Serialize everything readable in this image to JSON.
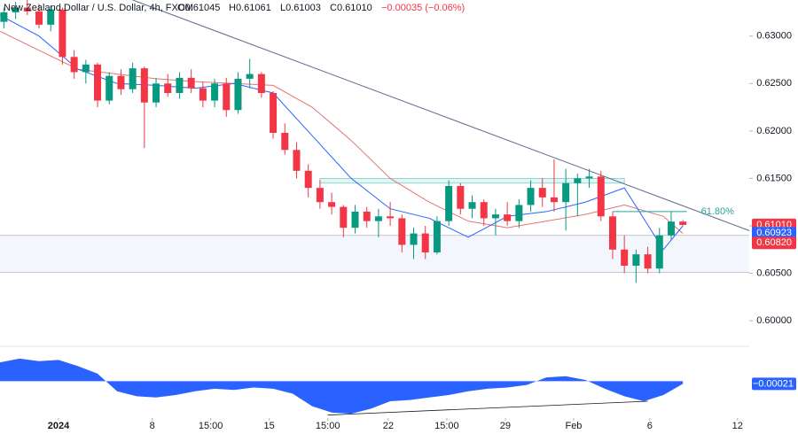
{
  "chart_data": {
    "type": "candlestick",
    "header": {
      "symbol": "New Zealand Dollar / U.S. Dollar, 4h, FXCM",
      "open": "O0.61045",
      "high": "H0.61061",
      "low": "L0.61003",
      "close": "C0.61010",
      "change": "−0.00035 (−0.06%)"
    },
    "up_color": "#089981",
    "down_color": "#f23645",
    "x": [
      1,
      4,
      7,
      10,
      13,
      16,
      19,
      22,
      25,
      28,
      31,
      34,
      37,
      40,
      43,
      46,
      49,
      52,
      55,
      58,
      61,
      64,
      67,
      70,
      73,
      76,
      79,
      82,
      85,
      88,
      91,
      94,
      97,
      100,
      103,
      106,
      109,
      112,
      115,
      118,
      121,
      124,
      127,
      130,
      133,
      136,
      139,
      142,
      145,
      148,
      151,
      154,
      157,
      160,
      163,
      166,
      169,
      172,
      175
    ],
    "open": [
      0.6315,
      0.6325,
      0.633,
      0.6326,
      0.6312,
      0.6328,
      0.6278,
      0.6262,
      0.627,
      0.6232,
      0.6258,
      0.6244,
      0.6266,
      0.623,
      0.625,
      0.624,
      0.6256,
      0.6245,
      0.6232,
      0.625,
      0.6222,
      0.6255,
      0.626,
      0.624,
      0.6198,
      0.618,
      0.6158,
      0.614,
      0.6125,
      0.612,
      0.6098,
      0.6115,
      0.6105,
      0.611,
      0.6108,
      0.608,
      0.6092,
      0.6072,
      0.6105,
      0.6142,
      0.6118,
      0.6125,
      0.6108,
      0.6112,
      0.6105,
      0.6122,
      0.614,
      0.613,
      0.6125,
      0.6145,
      0.615,
      0.6152,
      0.611,
      0.6075,
      0.6058,
      0.607,
      0.6055,
      0.609,
      0.61045
    ],
    "high": [
      0.633,
      0.6336,
      0.6338,
      0.6334,
      0.6332,
      0.633,
      0.6285,
      0.6275,
      0.6272,
      0.6262,
      0.6265,
      0.6272,
      0.6268,
      0.6256,
      0.626,
      0.6262,
      0.6265,
      0.6252,
      0.6255,
      0.6256,
      0.6262,
      0.6276,
      0.6262,
      0.6242,
      0.6208,
      0.6188,
      0.6165,
      0.6148,
      0.6135,
      0.6122,
      0.6122,
      0.612,
      0.6118,
      0.6125,
      0.6112,
      0.6098,
      0.61,
      0.611,
      0.6148,
      0.6145,
      0.6132,
      0.6128,
      0.6118,
      0.6125,
      0.6128,
      0.6148,
      0.615,
      0.617,
      0.616,
      0.6155,
      0.616,
      0.6158,
      0.6115,
      0.609,
      0.6075,
      0.6078,
      0.6098,
      0.6115,
      0.61061
    ],
    "low": [
      0.6308,
      0.6318,
      0.6322,
      0.6308,
      0.6305,
      0.627,
      0.6255,
      0.625,
      0.6225,
      0.6228,
      0.6238,
      0.624,
      0.6182,
      0.6225,
      0.6236,
      0.6234,
      0.624,
      0.6225,
      0.6225,
      0.6215,
      0.6218,
      0.6245,
      0.6235,
      0.6192,
      0.6175,
      0.615,
      0.613,
      0.6118,
      0.6112,
      0.6088,
      0.6092,
      0.6098,
      0.6088,
      0.61,
      0.6072,
      0.6065,
      0.6065,
      0.607,
      0.61,
      0.6112,
      0.6108,
      0.61,
      0.609,
      0.61,
      0.6098,
      0.6115,
      0.612,
      0.6115,
      0.6095,
      0.611,
      0.614,
      0.6105,
      0.6065,
      0.605,
      0.604,
      0.605,
      0.605,
      0.6085,
      0.61003
    ],
    "close": [
      0.6325,
      0.633,
      0.6326,
      0.6312,
      0.6328,
      0.6278,
      0.6262,
      0.627,
      0.6232,
      0.6258,
      0.6244,
      0.6266,
      0.623,
      0.625,
      0.624,
      0.6256,
      0.6245,
      0.6232,
      0.625,
      0.6222,
      0.6255,
      0.626,
      0.624,
      0.6198,
      0.618,
      0.6158,
      0.614,
      0.6125,
      0.612,
      0.6098,
      0.6115,
      0.6105,
      0.611,
      0.6108,
      0.608,
      0.6092,
      0.6072,
      0.6105,
      0.6142,
      0.6118,
      0.6125,
      0.6108,
      0.6112,
      0.6105,
      0.6122,
      0.614,
      0.613,
      0.6125,
      0.6145,
      0.615,
      0.6152,
      0.611,
      0.6075,
      0.6058,
      0.607,
      0.6055,
      0.609,
      0.61045,
      0.6101
    ],
    "moving_averages": {
      "x": [
        0,
        10,
        20,
        30,
        40,
        50,
        60,
        70,
        80,
        90,
        100,
        110,
        120,
        130,
        140,
        150,
        160,
        170,
        175
      ],
      "series": [
        {
          "color": "#e57373",
          "values": [
            0.6305,
            0.6285,
            0.6265,
            0.626,
            0.6255,
            0.6252,
            0.625,
            0.6248,
            0.6225,
            0.619,
            0.615,
            0.6125,
            0.6105,
            0.6098,
            0.6105,
            0.6112,
            0.6122,
            0.611,
            0.6092
          ]
        },
        {
          "color": "#2962ff",
          "values": [
            0.6322,
            0.63,
            0.6265,
            0.625,
            0.6248,
            0.6245,
            0.625,
            0.624,
            0.6195,
            0.615,
            0.6118,
            0.6108,
            0.6088,
            0.611,
            0.6115,
            0.6125,
            0.614,
            0.6075,
            0.61
          ]
        }
      ]
    },
    "xlim": [
      0,
      192
    ],
    "ylim": [
      0.5974,
      0.6338
    ],
    "yticks": [
      {
        "value": 0.6,
        "label": "0.60000"
      },
      {
        "value": 0.605,
        "label": "0.60500"
      },
      {
        "value": 0.61,
        "label": "0.61000"
      },
      {
        "value": 0.615,
        "label": "0.61500"
      },
      {
        "value": 0.62,
        "label": "0.62000"
      },
      {
        "value": 0.625,
        "label": "0.62500"
      },
      {
        "value": 0.63,
        "label": "0.63000"
      }
    ],
    "xticks": [
      {
        "value": 15,
        "label": "2024"
      },
      {
        "value": 39,
        "label": "8"
      },
      {
        "value": 54,
        "label": "15:00"
      },
      {
        "value": 69,
        "label": "15"
      },
      {
        "value": 84,
        "label": "15:00"
      },
      {
        "value": 99.5,
        "label": "22"
      },
      {
        "value": 114.5,
        "label": "15:00"
      },
      {
        "value": 129.5,
        "label": "29"
      },
      {
        "value": 147,
        "label": "Feb"
      },
      {
        "value": 166.5,
        "label": "6"
      },
      {
        "value": 189,
        "label": "12"
      }
    ],
    "price_tags": [
      {
        "value": 0.6101,
        "label": "0.61010",
        "color": "#f23645"
      },
      {
        "value": 0.60923,
        "label": "0.60923",
        "color": "#2962ff"
      },
      {
        "value": 0.6082,
        "label": "0.60820",
        "color": "#f23645"
      }
    ],
    "trendline": {
      "x": [
        34,
        192
      ],
      "values": [
        0.6338,
        0.6095
      ]
    },
    "support_zone": [
      0.6051,
      0.609
    ],
    "resistance_box": {
      "x": [
        82,
        160
      ],
      "values": [
        0.6145,
        0.615
      ]
    },
    "fib_level": {
      "x": [
        157,
        176
      ],
      "value": 0.6115,
      "label": "61.80%"
    },
    "oscillator": {
      "color": "#2962ff",
      "ylim": [
        -0.0028,
        0.0025
      ],
      "x": [
        0,
        5,
        10,
        15,
        20,
        25,
        30,
        35,
        40,
        45,
        50,
        55,
        60,
        65,
        70,
        75,
        80,
        85,
        90,
        95,
        100,
        105,
        110,
        115,
        120,
        125,
        130,
        135,
        140,
        145,
        150,
        155,
        160,
        165,
        170,
        175
      ],
      "values": [
        0.0015,
        0.0018,
        0.0016,
        0.0017,
        0.0012,
        0.0006,
        -0.0008,
        -0.0012,
        -0.0013,
        -0.0011,
        -0.0008,
        -0.0006,
        -0.0007,
        -0.0005,
        -0.0006,
        -0.001,
        -0.002,
        -0.0025,
        -0.0026,
        -0.0022,
        -0.0016,
        -0.0015,
        -0.0013,
        -0.0011,
        -0.0008,
        -0.0006,
        -0.0005,
        -0.0003,
        0.0003,
        0.0004,
        0.0001,
        -0.0006,
        -0.0012,
        -0.0016,
        -0.0011,
        -0.00021
      ],
      "tag": {
        "value": -0.00021,
        "label": "−0.00021"
      },
      "divergence": {
        "x": [
          84,
          166
        ],
        "values": [
          -0.0027,
          -0.0016
        ]
      }
    }
  }
}
